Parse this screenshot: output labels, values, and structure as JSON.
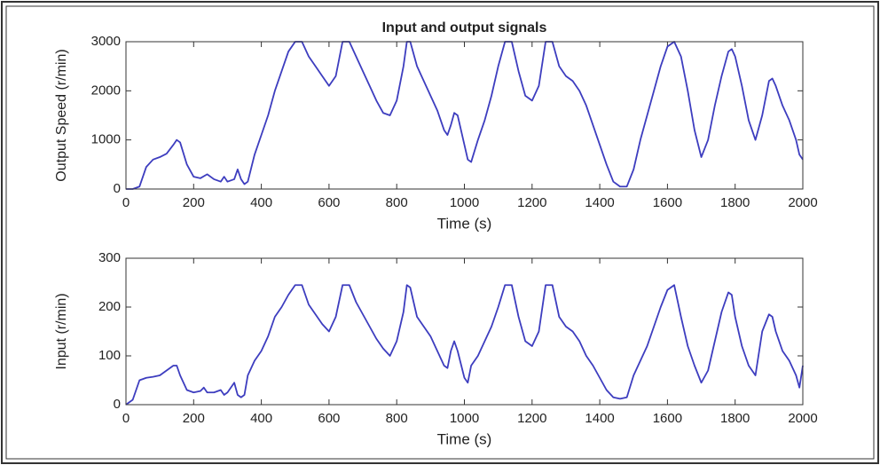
{
  "chart_data": [
    {
      "type": "line",
      "title": "Input and output signals",
      "xlabel": "Time (s)",
      "ylabel": "Output Speed (r/min)",
      "xlim": [
        0,
        2000
      ],
      "xticks": [
        0,
        200,
        400,
        600,
        800,
        1000,
        1200,
        1400,
        1600,
        1800,
        2000
      ],
      "ylim": [
        0,
        3000
      ],
      "yticks": [
        0,
        1000,
        2000,
        3000
      ],
      "grid": false,
      "color": "#3d3dbf",
      "x": [
        0,
        20,
        40,
        60,
        80,
        100,
        120,
        140,
        150,
        160,
        180,
        200,
        220,
        240,
        260,
        280,
        290,
        300,
        320,
        330,
        340,
        350,
        360,
        380,
        400,
        420,
        440,
        460,
        480,
        500,
        520,
        540,
        560,
        580,
        600,
        620,
        640,
        660,
        680,
        700,
        720,
        740,
        760,
        780,
        800,
        820,
        830,
        840,
        860,
        880,
        900,
        920,
        940,
        950,
        960,
        970,
        980,
        1000,
        1010,
        1020,
        1040,
        1060,
        1080,
        1100,
        1120,
        1140,
        1160,
        1180,
        1200,
        1220,
        1240,
        1260,
        1280,
        1300,
        1320,
        1340,
        1360,
        1380,
        1400,
        1420,
        1440,
        1460,
        1480,
        1500,
        1520,
        1540,
        1560,
        1580,
        1600,
        1620,
        1640,
        1660,
        1680,
        1700,
        1720,
        1740,
        1760,
        1780,
        1790,
        1800,
        1820,
        1840,
        1860,
        1880,
        1900,
        1910,
        1920,
        1940,
        1960,
        1980,
        1990,
        2000
      ],
      "values": [
        0,
        0,
        50,
        450,
        600,
        650,
        720,
        900,
        1000,
        950,
        500,
        250,
        220,
        300,
        200,
        150,
        250,
        150,
        200,
        400,
        200,
        100,
        150,
        700,
        1100,
        1500,
        2000,
        2400,
        2800,
        3000,
        3000,
        2700,
        2500,
        2300,
        2100,
        2300,
        3000,
        3000,
        2700,
        2400,
        2100,
        1800,
        1550,
        1500,
        1800,
        2500,
        3000,
        3000,
        2500,
        2200,
        1900,
        1600,
        1200,
        1100,
        1300,
        1550,
        1500,
        900,
        600,
        550,
        1000,
        1400,
        1900,
        2500,
        3000,
        3000,
        2400,
        1900,
        1800,
        2100,
        3000,
        3000,
        2500,
        2300,
        2200,
        2000,
        1700,
        1300,
        900,
        500,
        150,
        50,
        50,
        400,
        1000,
        1500,
        2000,
        2500,
        2900,
        3000,
        2700,
        2000,
        1200,
        650,
        1000,
        1700,
        2300,
        2800,
        2850,
        2700,
        2100,
        1400,
        1000,
        1500,
        2200,
        2250,
        2100,
        1700,
        1400,
        1000,
        700,
        600
      ]
    },
    {
      "type": "line",
      "xlabel": "Time (s)",
      "ylabel": "Input (r/min)",
      "xlim": [
        0,
        2000
      ],
      "xticks": [
        0,
        200,
        400,
        600,
        800,
        1000,
        1200,
        1400,
        1600,
        1800,
        2000
      ],
      "ylim": [
        0,
        300
      ],
      "yticks": [
        0,
        100,
        200,
        300
      ],
      "grid": false,
      "color": "#3d3dbf",
      "x": [
        0,
        20,
        40,
        60,
        80,
        100,
        120,
        140,
        150,
        160,
        180,
        200,
        220,
        230,
        240,
        260,
        280,
        290,
        300,
        320,
        330,
        340,
        350,
        360,
        380,
        400,
        420,
        440,
        460,
        480,
        500,
        520,
        540,
        560,
        580,
        600,
        620,
        640,
        660,
        680,
        700,
        720,
        740,
        760,
        780,
        800,
        820,
        830,
        840,
        860,
        880,
        900,
        920,
        940,
        950,
        960,
        970,
        980,
        1000,
        1010,
        1020,
        1040,
        1060,
        1080,
        1100,
        1120,
        1140,
        1160,
        1180,
        1200,
        1220,
        1240,
        1260,
        1280,
        1300,
        1320,
        1340,
        1360,
        1380,
        1400,
        1420,
        1440,
        1460,
        1480,
        1500,
        1520,
        1540,
        1560,
        1580,
        1600,
        1620,
        1640,
        1660,
        1680,
        1700,
        1720,
        1740,
        1760,
        1780,
        1790,
        1800,
        1820,
        1840,
        1860,
        1880,
        1900,
        1910,
        1920,
        1940,
        1960,
        1980,
        1990,
        2000
      ],
      "values": [
        0,
        10,
        50,
        55,
        57,
        60,
        70,
        80,
        80,
        60,
        30,
        25,
        28,
        35,
        25,
        25,
        30,
        20,
        25,
        45,
        20,
        15,
        20,
        60,
        90,
        110,
        140,
        180,
        200,
        225,
        245,
        245,
        205,
        185,
        165,
        150,
        180,
        245,
        245,
        210,
        185,
        160,
        135,
        115,
        100,
        130,
        190,
        245,
        240,
        180,
        160,
        140,
        110,
        80,
        75,
        110,
        130,
        110,
        55,
        45,
        80,
        100,
        130,
        160,
        200,
        245,
        245,
        180,
        130,
        120,
        150,
        245,
        245,
        180,
        160,
        150,
        130,
        100,
        80,
        55,
        30,
        15,
        12,
        15,
        60,
        90,
        120,
        160,
        200,
        235,
        245,
        180,
        120,
        80,
        45,
        70,
        130,
        190,
        230,
        225,
        180,
        120,
        80,
        60,
        150,
        185,
        180,
        150,
        110,
        90,
        60,
        35,
        80
      ]
    }
  ]
}
